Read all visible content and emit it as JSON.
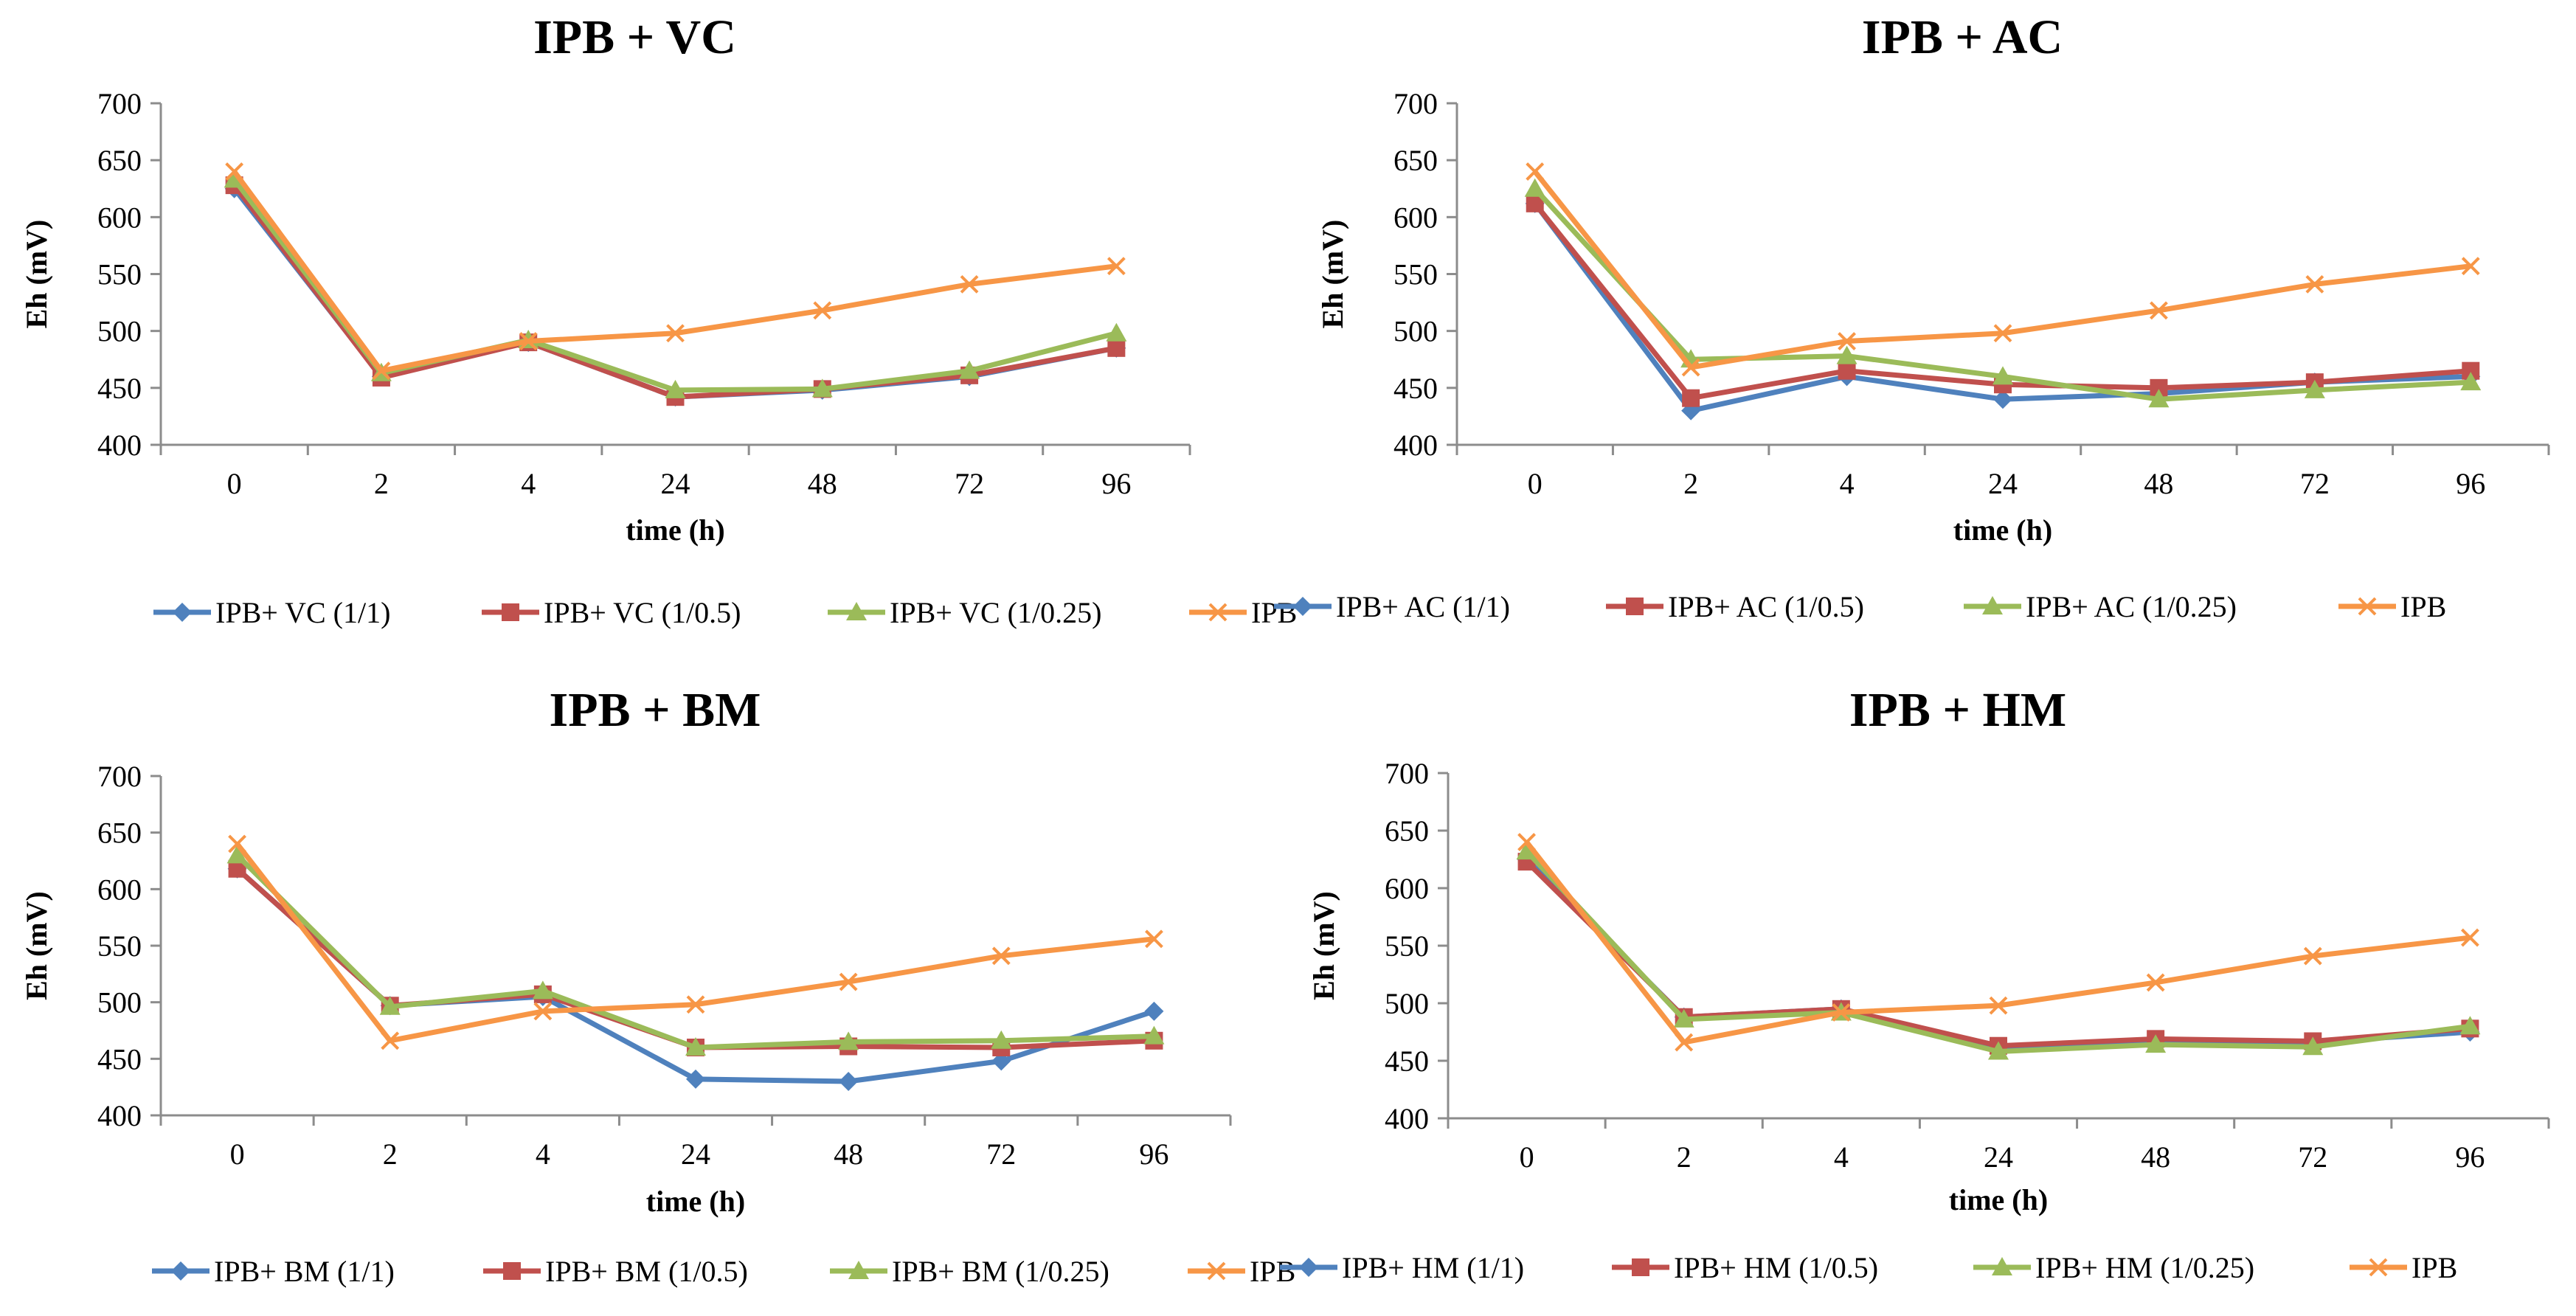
{
  "colors": {
    "s1": "#4F81BD",
    "s2": "#C0504D",
    "s3": "#9BBB59",
    "s4": "#F79646"
  },
  "chart_data": [
    {
      "type": "line",
      "title": "IPB + VC",
      "xlabel": "time (h)",
      "ylabel": "Eh (mV)",
      "categories": [
        "0",
        "2",
        "4",
        "24",
        "48",
        "72",
        "96"
      ],
      "ylim": [
        400,
        700
      ],
      "yticks": [
        400,
        450,
        500,
        550,
        600,
        650,
        700
      ],
      "series": [
        {
          "name": "IPB+ VC (1/1)",
          "marker": "diamond",
          "values": [
            625,
            460,
            490,
            442,
            448,
            460,
            485
          ]
        },
        {
          "name": "IPB+ VC (1/0.5)",
          "marker": "square",
          "values": [
            628,
            459,
            490,
            442,
            449,
            461,
            485
          ]
        },
        {
          "name": "IPB+ VC (1/0.25)",
          "marker": "triangle",
          "values": [
            633,
            463,
            492,
            448,
            449,
            465,
            498
          ]
        },
        {
          "name": "IPB",
          "marker": "x",
          "values": [
            640,
            465,
            491,
            498,
            518,
            541,
            557
          ]
        }
      ]
    },
    {
      "type": "line",
      "title": "IPB + AC",
      "xlabel": "time (h)",
      "ylabel": "Eh (mV)",
      "categories": [
        "0",
        "2",
        "4",
        "24",
        "48",
        "72",
        "96"
      ],
      "ylim": [
        400,
        700
      ],
      "yticks": [
        400,
        450,
        500,
        550,
        600,
        650,
        700
      ],
      "series": [
        {
          "name": "IPB+ AC (1/1)",
          "marker": "diamond",
          "values": [
            612,
            430,
            460,
            440,
            445,
            455,
            460
          ]
        },
        {
          "name": "IPB+ AC (1/0.5)",
          "marker": "square",
          "values": [
            612,
            441,
            465,
            453,
            450,
            455,
            465
          ]
        },
        {
          "name": "IPB+ AC (1/0.25)",
          "marker": "triangle",
          "values": [
            625,
            475,
            478,
            460,
            440,
            448,
            455
          ]
        },
        {
          "name": "IPB",
          "marker": "x",
          "values": [
            640,
            468,
            491,
            498,
            518,
            541,
            557
          ]
        }
      ]
    },
    {
      "type": "line",
      "title": "IPB + BM",
      "xlabel": "time (h)",
      "ylabel": "Eh (mV)",
      "categories": [
        "0",
        "2",
        "4",
        "24",
        "48",
        "72",
        "96"
      ],
      "ylim": [
        400,
        700
      ],
      "yticks": [
        400,
        450,
        500,
        550,
        600,
        650,
        700
      ],
      "series": [
        {
          "name": "IPB+ BM (1/1)",
          "marker": "diamond",
          "values": [
            618,
            497,
            505,
            432,
            430,
            448,
            492
          ]
        },
        {
          "name": "IPB+ BM (1/0.5)",
          "marker": "square",
          "values": [
            618,
            497,
            507,
            460,
            461,
            460,
            466
          ]
        },
        {
          "name": "IPB+ BM (1/0.25)",
          "marker": "triangle",
          "values": [
            630,
            496,
            510,
            460,
            465,
            466,
            470
          ]
        },
        {
          "name": "IPB",
          "marker": "x",
          "values": [
            640,
            466,
            492,
            498,
            518,
            541,
            556
          ]
        }
      ]
    },
    {
      "type": "line",
      "title": "IPB + HM",
      "xlabel": "time (h)",
      "ylabel": "Eh (mV)",
      "categories": [
        "0",
        "2",
        "4",
        "24",
        "48",
        "72",
        "96"
      ],
      "ylim": [
        400,
        700
      ],
      "yticks": [
        400,
        450,
        500,
        550,
        600,
        650,
        700
      ],
      "series": [
        {
          "name": "IPB+ HM (1/1)",
          "marker": "diamond",
          "values": [
            625,
            488,
            495,
            462,
            468,
            466,
            475
          ]
        },
        {
          "name": "IPB+ HM (1/0.5)",
          "marker": "square",
          "values": [
            623,
            488,
            495,
            463,
            469,
            467,
            478
          ]
        },
        {
          "name": "IPB+ HM (1/0.25)",
          "marker": "triangle",
          "values": [
            632,
            486,
            492,
            458,
            464,
            462,
            480
          ]
        },
        {
          "name": "IPB",
          "marker": "x",
          "values": [
            640,
            466,
            492,
            498,
            518,
            541,
            557
          ]
        }
      ]
    }
  ]
}
